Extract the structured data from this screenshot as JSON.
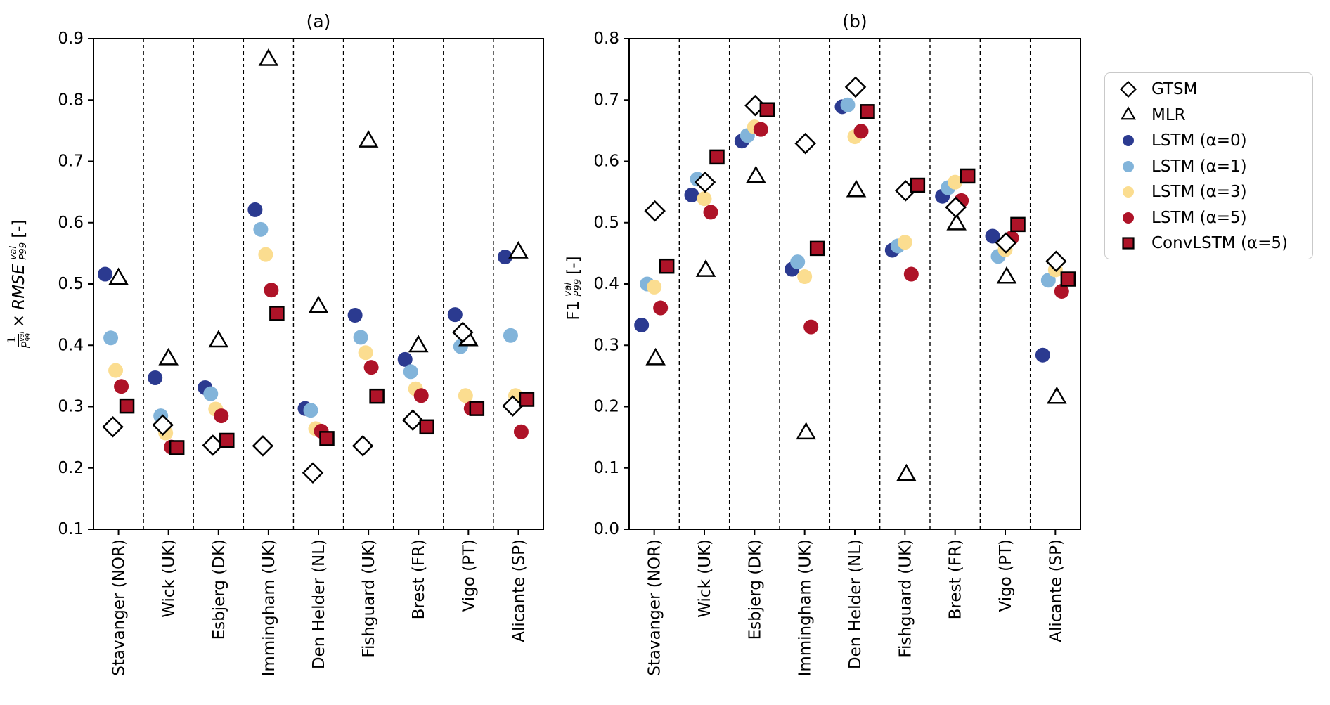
{
  "figure": {
    "titles": {
      "a": "(a)",
      "b": "(b)"
    },
    "ylabel_a": {
      "frac_num": "1",
      "frac_den_base": "P",
      "frac_den_sup": "val",
      "frac_den_sub": "99",
      "times": "×",
      "rmse_base": "RMSE",
      "rmse_sup": "val",
      "rmse_sub": "P99",
      "units": "[-]"
    },
    "ylabel_b": {
      "base": "F1",
      "sup": "val",
      "sub": "P99",
      "units": "[-]"
    }
  },
  "colors": {
    "dark_blue": "#2b3a90",
    "light_blue": "#82b4da",
    "yellow": "#fbdd90",
    "dark_red": "#ae1328",
    "marker_edge": "#000000",
    "axis": "#000000",
    "legend_border": "#c9c9c9"
  },
  "chart_data": [
    {
      "type": "scatter",
      "title": "(a)",
      "ylabel": "1/P99_val × RMSE_P99^val [-]",
      "ylim": [
        0.1,
        0.9
      ],
      "yticks": [
        0.1,
        0.2,
        0.3,
        0.4,
        0.5,
        0.6,
        0.7,
        0.8,
        0.9
      ],
      "grid": "vertical-dashed-category-separators",
      "categories": [
        "Stavanger (NOR)",
        "Wick (UK)",
        "Esbjerg (DK)",
        "Immingham (UK)",
        "Den Helder (NL)",
        "Fishguard (UK)",
        "Brest (FR)",
        "Vigo (PT)",
        "Alicante (SP)"
      ],
      "series": [
        {
          "name": "GTSM",
          "marker": "diamond",
          "fill": "#ffffff",
          "stroke": "#000000",
          "values": [
            0.267,
            0.27,
            0.237,
            0.236,
            0.192,
            0.236,
            0.278,
            0.421,
            0.301
          ]
        },
        {
          "name": "MLR",
          "marker": "triangle",
          "fill": "#ffffff",
          "stroke": "#000000",
          "values": [
            0.508,
            0.377,
            0.406,
            0.865,
            0.462,
            0.732,
            0.398,
            0.408,
            0.551
          ]
        },
        {
          "name": "LSTM (α=0)",
          "marker": "circle",
          "fill": "#2b3a90",
          "stroke": "none",
          "values": [
            0.516,
            0.347,
            0.331,
            0.621,
            0.297,
            0.449,
            0.377,
            0.45,
            0.544
          ]
        },
        {
          "name": "LSTM (α=1)",
          "marker": "circle",
          "fill": "#82b4da",
          "stroke": "none",
          "values": [
            0.412,
            0.285,
            0.321,
            0.589,
            0.294,
            0.413,
            0.357,
            0.398,
            0.416
          ]
        },
        {
          "name": "LSTM (α=3)",
          "marker": "circle",
          "fill": "#fbdd90",
          "stroke": "none",
          "values": [
            0.359,
            0.257,
            0.296,
            0.548,
            0.264,
            0.388,
            0.329,
            0.318,
            0.318
          ]
        },
        {
          "name": "LSTM (α=5)",
          "marker": "circle",
          "fill": "#ae1328",
          "stroke": "none",
          "values": [
            0.333,
            0.234,
            0.285,
            0.49,
            0.26,
            0.364,
            0.318,
            0.297,
            0.259
          ]
        },
        {
          "name": "ConvLSTM (α=5)",
          "marker": "square",
          "fill": "#ae1328",
          "stroke": "#000000",
          "values": [
            0.301,
            0.233,
            0.245,
            0.452,
            0.248,
            0.317,
            0.267,
            0.297,
            0.312
          ]
        }
      ]
    },
    {
      "type": "scatter",
      "title": "(b)",
      "ylabel": "F1_P99^val [-]",
      "ylim": [
        0.0,
        0.8
      ],
      "yticks": [
        0.0,
        0.1,
        0.2,
        0.3,
        0.4,
        0.5,
        0.6,
        0.7,
        0.8
      ],
      "grid": "vertical-dashed-category-separators",
      "categories": [
        "Stavanger (NOR)",
        "Wick (UK)",
        "Esbjerg (DK)",
        "Immingham (UK)",
        "Den Helder (NL)",
        "Fishguard (UK)",
        "Brest (FR)",
        "Vigo (PT)",
        "Alicante (SP)"
      ],
      "series": [
        {
          "name": "GTSM",
          "marker": "diamond",
          "fill": "#ffffff",
          "stroke": "#000000",
          "values": [
            0.519,
            0.566,
            0.691,
            0.629,
            0.721,
            0.552,
            0.525,
            0.467,
            0.437
          ]
        },
        {
          "name": "MLR",
          "marker": "triangle",
          "fill": "#ffffff",
          "stroke": "#000000",
          "values": [
            0.277,
            0.421,
            0.574,
            0.156,
            0.551,
            0.088,
            0.497,
            0.41,
            0.214
          ]
        },
        {
          "name": "LSTM (α=0)",
          "marker": "circle",
          "fill": "#2b3a90",
          "stroke": "none",
          "values": [
            0.333,
            0.545,
            0.633,
            0.424,
            0.689,
            0.455,
            0.543,
            0.478,
            0.284
          ]
        },
        {
          "name": "LSTM (α=1)",
          "marker": "circle",
          "fill": "#82b4da",
          "stroke": "none",
          "values": [
            0.4,
            0.571,
            0.642,
            0.436,
            0.692,
            0.462,
            0.557,
            0.445,
            0.406
          ]
        },
        {
          "name": "LSTM (α=3)",
          "marker": "circle",
          "fill": "#fbdd90",
          "stroke": "none",
          "values": [
            0.395,
            0.539,
            0.656,
            0.412,
            0.64,
            0.468,
            0.566,
            0.456,
            0.423
          ]
        },
        {
          "name": "LSTM (α=5)",
          "marker": "circle",
          "fill": "#ae1328",
          "stroke": "none",
          "values": [
            0.361,
            0.517,
            0.652,
            0.33,
            0.649,
            0.416,
            0.536,
            0.475,
            0.388
          ]
        },
        {
          "name": "ConvLSTM (α=5)",
          "marker": "square",
          "fill": "#ae1328",
          "stroke": "#000000",
          "values": [
            0.429,
            0.607,
            0.684,
            0.458,
            0.681,
            0.561,
            0.576,
            0.497,
            0.408
          ]
        }
      ]
    }
  ]
}
